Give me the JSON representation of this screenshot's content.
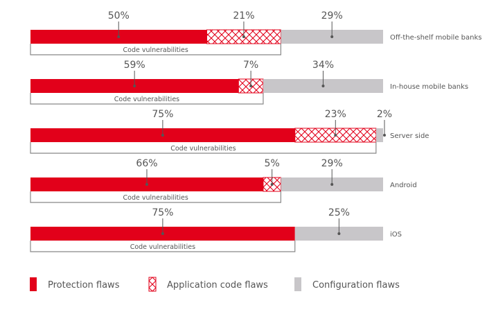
{
  "chart_data": {
    "type": "bar",
    "orientation": "horizontal-stacked",
    "categories": [
      "Off-the-shelf mobile banks",
      "In-house mobile banks",
      "Server side",
      "Android",
      "iOS"
    ],
    "series": [
      {
        "name": "Protection flaws",
        "values": [
          50,
          59,
          75,
          66,
          75
        ],
        "color": "#e2001a",
        "pattern": "solid"
      },
      {
        "name": "Application code flaws",
        "values": [
          21,
          7,
          23,
          5,
          0
        ],
        "color": "#e2001a",
        "pattern": "crosshatch"
      },
      {
        "name": "Configuration flaws",
        "values": [
          29,
          34,
          2,
          29,
          25
        ],
        "color": "#c8c6c9",
        "pattern": "solid"
      }
    ],
    "value_labels": [
      [
        "50%",
        "21%",
        "29%"
      ],
      [
        "59%",
        "7%",
        "34%"
      ],
      [
        "75%",
        "23%",
        "2%"
      ],
      [
        "66%",
        "5%",
        "29%"
      ],
      [
        "75%",
        "",
        "25%"
      ]
    ],
    "bracket_label": "Code vulnerabilities",
    "xlim": [
      0,
      100
    ],
    "legend_placement": "bottom",
    "grid": false
  }
}
